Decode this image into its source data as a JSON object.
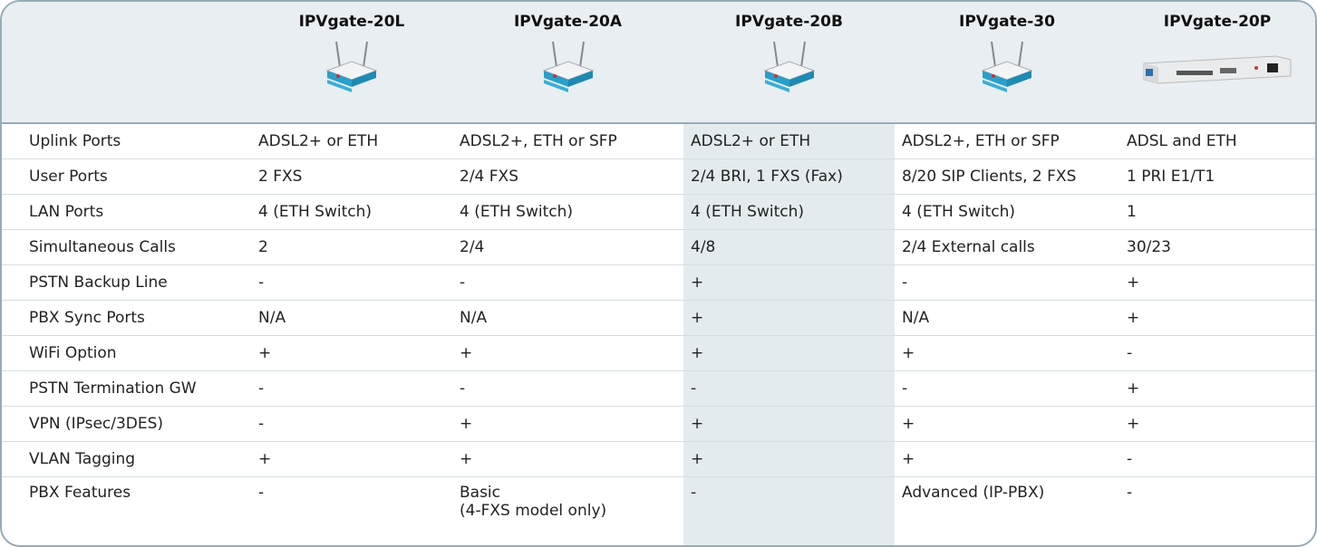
{
  "table": {
    "header": [
      "IPVgate-20L",
      "IPVgate-20A",
      "IPVgate-20B",
      "IPVgate-30",
      "IPVgate-20P"
    ],
    "rows": [
      [
        "Uplink Ports",
        "ADSL2+ or ETH",
        "ADSL2+, ETH or SFP",
        "ADSL2+ or ETH",
        "ADSL2+, ETH or SFP",
        "ADSL and ETH"
      ],
      [
        "User Ports",
        "2 FXS",
        "2/4 FXS",
        "2/4 BRI, 1 FXS (Fax)",
        "8/20 SIP Clients, 2 FXS",
        "1 PRI E1/T1"
      ],
      [
        "LAN Ports",
        "4 (ETH Switch)",
        "4 (ETH Switch)",
        "4 (ETH Switch)",
        "4 (ETH Switch)",
        "1"
      ],
      [
        "Simultaneous Calls",
        "2",
        "2/4",
        "4/8",
        "2/4 External calls",
        "30/23"
      ],
      [
        "PSTN Backup Line",
        "-",
        "-",
        "+",
        "-",
        "+"
      ],
      [
        "PBX Sync Ports",
        "N/A",
        "N/A",
        "+",
        "N/A",
        "+"
      ],
      [
        "WiFi Option",
        "+",
        "+",
        "+",
        "+",
        "-"
      ],
      [
        "PSTN Termination GW",
        "-",
        "-",
        "-",
        "-",
        "+"
      ],
      [
        "VPN (IPsec/3DES)",
        "-",
        "+",
        "+",
        "+",
        "+"
      ],
      [
        "VLAN Tagging",
        "+",
        "+",
        "+",
        "+",
        "-"
      ],
      [
        "PBX Features",
        "-",
        "Basic\n(4-FXS model only)",
        "-",
        "Advanced (IP-PBX)",
        "-"
      ]
    ]
  }
}
